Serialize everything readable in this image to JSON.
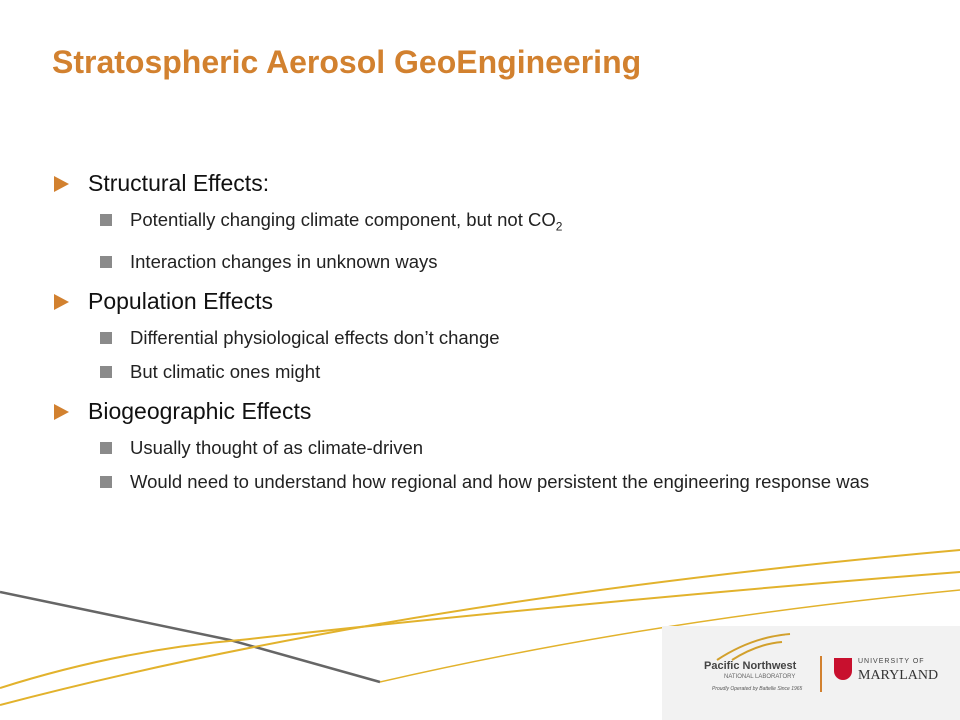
{
  "title": "Stratospheric Aerosol GeoEngineering",
  "sections": [
    {
      "heading": "Structural Effects:",
      "bullets": [
        {
          "text": "Potentially changing climate component, but not CO",
          "subscript": "2"
        },
        {
          "text": "Interaction changes in unknown ways"
        }
      ]
    },
    {
      "heading": "Population Effects",
      "bullets": [
        {
          "text": "Differential physiological effects don’t change"
        },
        {
          "text": "But climatic ones might"
        }
      ]
    },
    {
      "heading": "Biogeographic Effects",
      "bullets": [
        {
          "text": "Usually thought of as climate-driven"
        },
        {
          "text": "Would need to understand how regional and how persistent the engineering response was"
        }
      ]
    }
  ],
  "logos": {
    "pnnl_name": "Pacific Northwest",
    "pnnl_sub": "NATIONAL LABORATORY",
    "pnnl_tagline": "Proudly Operated by Battelle Since 1965",
    "umd_top": "UNIVERSITY OF",
    "umd_name": "MARYLAND"
  }
}
